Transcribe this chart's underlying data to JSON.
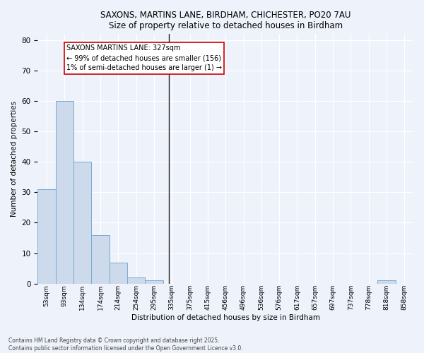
{
  "title1": "SAXONS, MARTINS LANE, BIRDHAM, CHICHESTER, PO20 7AU",
  "title2": "Size of property relative to detached houses in Birdham",
  "xlabel": "Distribution of detached houses by size in Birdham",
  "ylabel": "Number of detached properties",
  "categories": [
    "53sqm",
    "93sqm",
    "134sqm",
    "174sqm",
    "214sqm",
    "254sqm",
    "295sqm",
    "335sqm",
    "375sqm",
    "415sqm",
    "456sqm",
    "496sqm",
    "536sqm",
    "576sqm",
    "617sqm",
    "657sqm",
    "697sqm",
    "737sqm",
    "778sqm",
    "818sqm",
    "858sqm"
  ],
  "values": [
    31,
    60,
    40,
    16,
    7,
    2,
    1,
    0,
    0,
    0,
    0,
    0,
    0,
    0,
    0,
    0,
    0,
    0,
    0,
    1,
    0
  ],
  "bar_color": "#ccdaeb",
  "bar_edge_color": "#7aaacf",
  "vline_x": 6.82,
  "marker_label": "SAXONS MARTINS LANE: 327sqm",
  "annotation_line1": "← 99% of detached houses are smaller (156)",
  "annotation_line2": "1% of semi-detached houses are larger (1) →",
  "vline_color": "#222222",
  "annotation_box_edge": "#cc0000",
  "annotation_box_fill": "#ffffff",
  "footer1": "Contains HM Land Registry data © Crown copyright and database right 2025.",
  "footer2": "Contains public sector information licensed under the Open Government Licence v3.0.",
  "ylim": [
    0,
    82
  ],
  "background_color": "#eef2fb"
}
